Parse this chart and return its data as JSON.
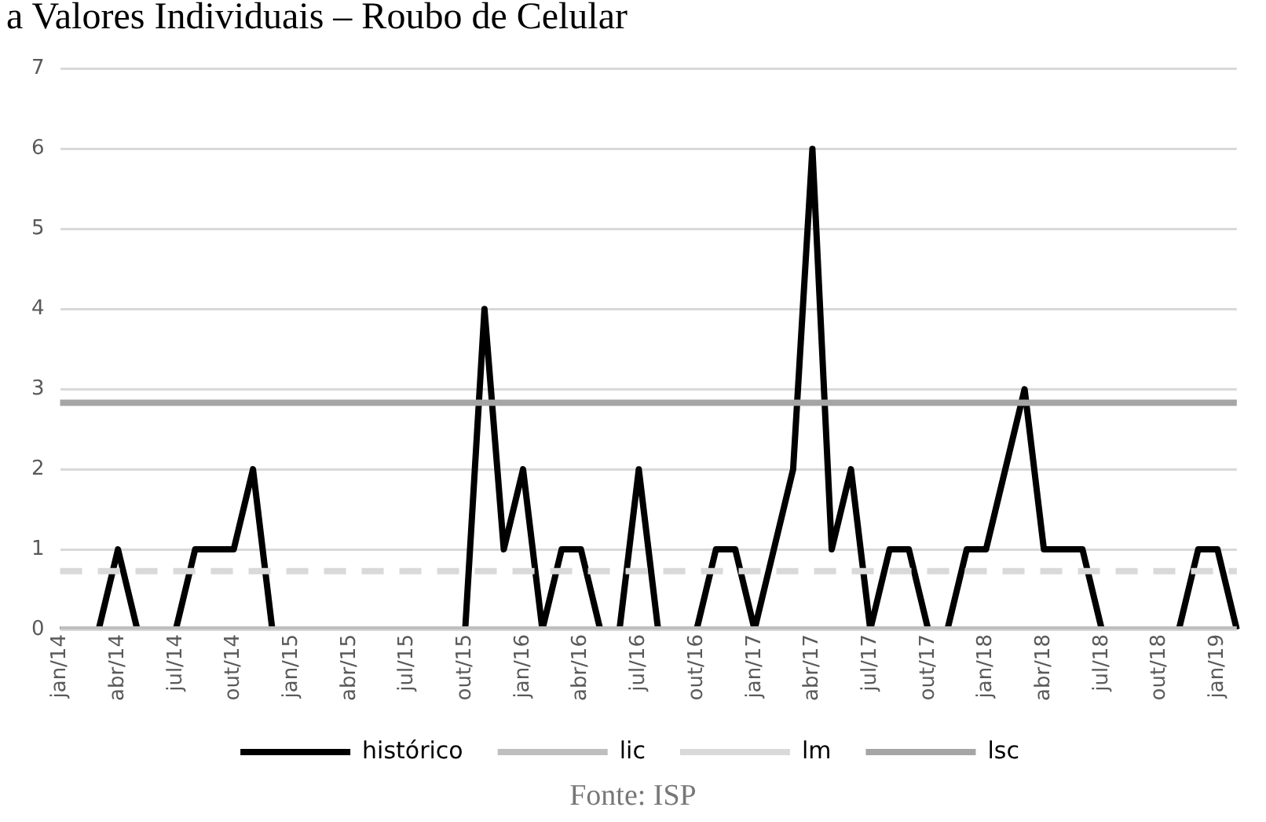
{
  "chart_data": {
    "type": "line",
    "title": "a Valores Individuais – Roubo de Celular",
    "annotations": [
      "Fonte: ISP"
    ],
    "categories": [
      "jan/14",
      null,
      null,
      "abr/14",
      null,
      null,
      "jul/14",
      null,
      null,
      "out/14",
      null,
      null,
      "jan/15",
      null,
      null,
      "abr/15",
      null,
      null,
      "jul/15",
      null,
      null,
      "out/15",
      null,
      null,
      "jan/16",
      null,
      null,
      "abr/16",
      null,
      null,
      "jul/16",
      null,
      null,
      "out/16",
      null,
      null,
      "jan/17",
      null,
      null,
      "abr/17",
      null,
      null,
      "jul/17",
      null,
      null,
      "out/17",
      null,
      null,
      "jan/18",
      null,
      null,
      "abr/18",
      null,
      null,
      "jul/18",
      null,
      null,
      "out/18",
      null,
      null,
      "jan/19",
      null
    ],
    "series": [
      {
        "name": "histórico",
        "color": "#000000",
        "line_style": "solid",
        "values": [
          0,
          0,
          0,
          1,
          0,
          0,
          0,
          1,
          1,
          1,
          2,
          0,
          0,
          0,
          0,
          0,
          0,
          0,
          0,
          0,
          0,
          0,
          4,
          1,
          2,
          0,
          1,
          1,
          0,
          0,
          2,
          0,
          0,
          0,
          1,
          1,
          0,
          1,
          2,
          6,
          1,
          2,
          0,
          1,
          1,
          0,
          0,
          1,
          1,
          2,
          3,
          1,
          1,
          1,
          0,
          0,
          0,
          0,
          0,
          1,
          1,
          0
        ]
      },
      {
        "name": "lic",
        "color": "#bfbfbf",
        "line_style": "solid",
        "values": [
          0,
          0,
          0,
          0,
          0,
          0,
          0,
          0,
          0,
          0,
          0,
          0,
          0,
          0,
          0,
          0,
          0,
          0,
          0,
          0,
          0,
          0,
          0,
          0,
          0,
          0,
          0,
          0,
          0,
          0,
          0,
          0,
          0,
          0,
          0,
          0,
          0,
          0,
          0,
          0,
          0,
          0,
          0,
          0,
          0,
          0,
          0,
          0,
          0,
          0,
          0,
          0,
          0,
          0,
          0,
          0,
          0,
          0,
          0,
          0,
          0,
          0
        ]
      },
      {
        "name": "lm",
        "color": "#d9d9d9",
        "line_style": "dashed",
        "values": [
          0.73,
          0.73,
          0.73,
          0.73,
          0.73,
          0.73,
          0.73,
          0.73,
          0.73,
          0.73,
          0.73,
          0.73,
          0.73,
          0.73,
          0.73,
          0.73,
          0.73,
          0.73,
          0.73,
          0.73,
          0.73,
          0.73,
          0.73,
          0.73,
          0.73,
          0.73,
          0.73,
          0.73,
          0.73,
          0.73,
          0.73,
          0.73,
          0.73,
          0.73,
          0.73,
          0.73,
          0.73,
          0.73,
          0.73,
          0.73,
          0.73,
          0.73,
          0.73,
          0.73,
          0.73,
          0.73,
          0.73,
          0.73,
          0.73,
          0.73,
          0.73,
          0.73,
          0.73,
          0.73,
          0.73,
          0.73,
          0.73,
          0.73,
          0.73,
          0.73,
          0.73,
          0.73
        ]
      },
      {
        "name": "lsc",
        "color": "#a5a5a5",
        "line_style": "solid",
        "values": [
          2.83,
          2.83,
          2.83,
          2.83,
          2.83,
          2.83,
          2.83,
          2.83,
          2.83,
          2.83,
          2.83,
          2.83,
          2.83,
          2.83,
          2.83,
          2.83,
          2.83,
          2.83,
          2.83,
          2.83,
          2.83,
          2.83,
          2.83,
          2.83,
          2.83,
          2.83,
          2.83,
          2.83,
          2.83,
          2.83,
          2.83,
          2.83,
          2.83,
          2.83,
          2.83,
          2.83,
          2.83,
          2.83,
          2.83,
          2.83,
          2.83,
          2.83,
          2.83,
          2.83,
          2.83,
          2.83,
          2.83,
          2.83,
          2.83,
          2.83,
          2.83,
          2.83,
          2.83,
          2.83,
          2.83,
          2.83,
          2.83,
          2.83,
          2.83,
          2.83,
          2.83,
          2.83
        ]
      }
    ],
    "ylim": [
      0,
      7
    ],
    "yticks": [
      0,
      1,
      2,
      3,
      4,
      5,
      6,
      7
    ],
    "grid": "y",
    "legend": "bottom",
    "marker": "none"
  }
}
